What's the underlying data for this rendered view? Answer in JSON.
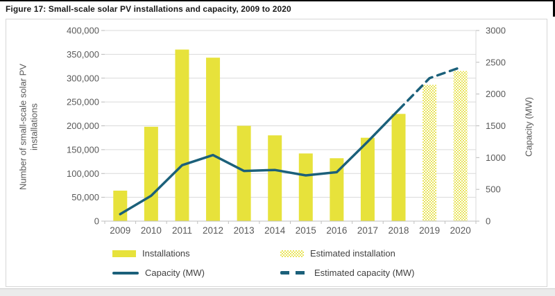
{
  "page": {
    "figure_title": "Figure 17: Small-scale solar PV installations and capacity, 2009 to 2020"
  },
  "colors": {
    "bar": "#e7e23b",
    "bar_estimated_dot": "#e9e45c",
    "line": "#1b607a",
    "grid": "#d9d9d9",
    "axis_text": "#595959",
    "title_text": "#1a1a1a",
    "chart_border": "#d6d6d6",
    "bottom_strip": "#ebebeb"
  },
  "chart_data": {
    "type": "bar",
    "title": "Figure 17: Small-scale solar PV installations and capacity, 2009 to 2020",
    "categories": [
      "2009",
      "2010",
      "2011",
      "2012",
      "2013",
      "2014",
      "2015",
      "2016",
      "2017",
      "2018",
      "2019",
      "2020"
    ],
    "series": [
      {
        "name": "Installations",
        "type": "bar",
        "style": "solid",
        "axis": "left",
        "values": [
          64000,
          198000,
          360000,
          343000,
          200000,
          180000,
          142000,
          132000,
          175000,
          225000,
          null,
          null
        ]
      },
      {
        "name": "Estimated installation",
        "type": "bar",
        "style": "dotted",
        "axis": "left",
        "values": [
          null,
          null,
          null,
          null,
          null,
          null,
          null,
          null,
          null,
          null,
          286000,
          315000
        ]
      },
      {
        "name": "Capacity (MW)",
        "type": "line",
        "style": "solid",
        "axis": "right",
        "values": [
          110,
          400,
          880,
          1040,
          790,
          805,
          720,
          770,
          1250,
          1750,
          null,
          null
        ]
      },
      {
        "name": "Estimated capacity (MW)",
        "type": "line",
        "style": "dashed",
        "axis": "right",
        "values": [
          null,
          null,
          null,
          null,
          null,
          null,
          null,
          null,
          null,
          1750,
          2250,
          2420
        ]
      }
    ],
    "left_axis": {
      "title": "Number of small-scale solar PV\ninstallations",
      "min": 0,
      "max": 400000,
      "step": 50000,
      "tick_labels": [
        "0",
        "50,000",
        "100,000",
        "150,000",
        "200,000",
        "250,000",
        "300,000",
        "350,000",
        "400,000"
      ]
    },
    "right_axis": {
      "title": "Capacity (MW)",
      "min": 0,
      "max": 3000,
      "step": 500,
      "tick_labels": [
        "0",
        "500",
        "1000",
        "1500",
        "2000",
        "2500",
        "3000"
      ]
    },
    "grid": true,
    "legend_position": "bottom",
    "legend": [
      {
        "label": "Installations",
        "swatch": "bar-solid"
      },
      {
        "label": "Estimated installation",
        "swatch": "bar-estimated"
      },
      {
        "label": "Capacity (MW)",
        "swatch": "line-solid"
      },
      {
        "label": "Estimated capacity (MW)",
        "swatch": "line-dashed"
      }
    ]
  }
}
